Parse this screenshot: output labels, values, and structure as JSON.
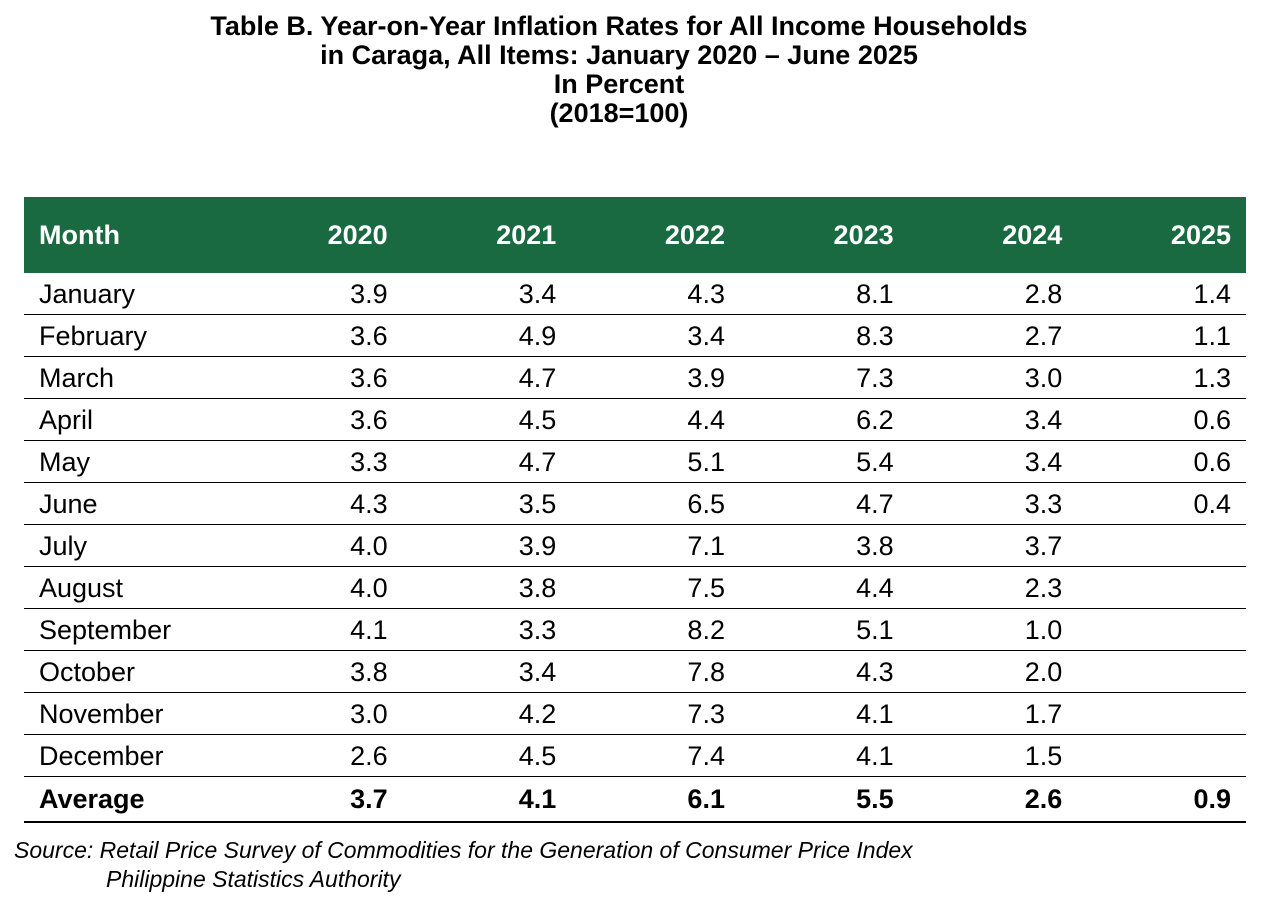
{
  "title": {
    "line1": "Table B. Year-on-Year Inflation Rates for All Income Households",
    "line2": "in Caraga, All Items: January 2020 – June 2025",
    "line3": "In Percent",
    "line4": "(2018=100)"
  },
  "table": {
    "header_color": "#1a6a41",
    "columns": [
      "Month",
      "2020",
      "2021",
      "2022",
      "2023",
      "2024",
      "2025"
    ],
    "rows": [
      {
        "month": "January",
        "values": [
          "3.9",
          "3.4",
          "4.3",
          "8.1",
          "2.8",
          "1.4"
        ]
      },
      {
        "month": "February",
        "values": [
          "3.6",
          "4.9",
          "3.4",
          "8.3",
          "2.7",
          "1.1"
        ]
      },
      {
        "month": "March",
        "values": [
          "3.6",
          "4.7",
          "3.9",
          "7.3",
          "3.0",
          "1.3"
        ]
      },
      {
        "month": "April",
        "values": [
          "3.6",
          "4.5",
          "4.4",
          "6.2",
          "3.4",
          "0.6"
        ]
      },
      {
        "month": "May",
        "values": [
          "3.3",
          "4.7",
          "5.1",
          "5.4",
          "3.4",
          "0.6"
        ]
      },
      {
        "month": "June",
        "values": [
          "4.3",
          "3.5",
          "6.5",
          "4.7",
          "3.3",
          "0.4"
        ]
      },
      {
        "month": "July",
        "values": [
          "4.0",
          "3.9",
          "7.1",
          "3.8",
          "3.7",
          ""
        ]
      },
      {
        "month": "August",
        "values": [
          "4.0",
          "3.8",
          "7.5",
          "4.4",
          "2.3",
          ""
        ]
      },
      {
        "month": "September",
        "values": [
          "4.1",
          "3.3",
          "8.2",
          "5.1",
          "1.0",
          ""
        ]
      },
      {
        "month": "October",
        "values": [
          "3.8",
          "3.4",
          "7.8",
          "4.3",
          "2.0",
          ""
        ]
      },
      {
        "month": "November",
        "values": [
          "3.0",
          "4.2",
          "7.3",
          "4.1",
          "1.7",
          ""
        ]
      },
      {
        "month": "December",
        "values": [
          "2.6",
          "4.5",
          "7.4",
          "4.1",
          "1.5",
          ""
        ]
      }
    ],
    "average": {
      "label": "Average",
      "values": [
        "3.7",
        "4.1",
        "6.1",
        "5.5",
        "2.6",
        "0.9"
      ]
    }
  },
  "source": {
    "line1": "Source: Retail Price Survey of Commodities for the Generation of Consumer Price Index",
    "line2": "Philippine Statistics Authority"
  }
}
